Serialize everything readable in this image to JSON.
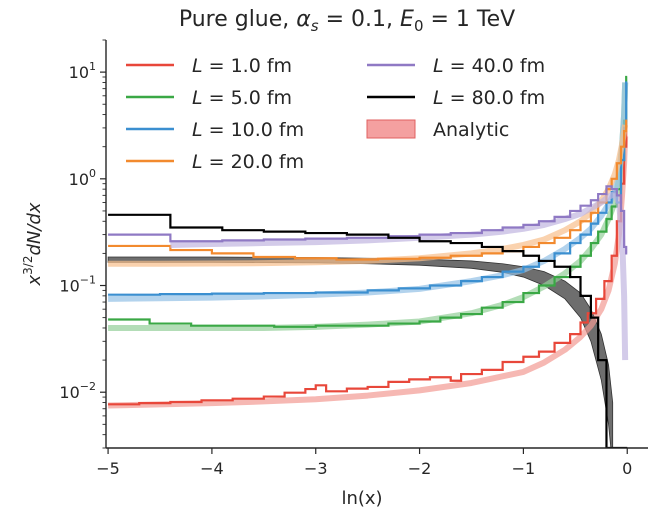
{
  "chart_data": {
    "type": "line",
    "title_parts": {
      "prefix": "Pure glue, ",
      "alpha": "α",
      "alpha_sub": "s",
      "mid": " = 0.1, ",
      "e": "E",
      "e_sub": "0",
      "suffix": " = 1 TeV"
    },
    "xlabel": "ln(x)",
    "ylabel_parts": {
      "base": "x",
      "exp": "3/2",
      "rest": "dN/dx"
    },
    "xlim": [
      -5.02,
      0.2
    ],
    "ylim": [
      0.003,
      20
    ],
    "yscale": "log",
    "grid": false,
    "legend_position": "top",
    "x_ticks": [
      {
        "value": -5,
        "label": "−5"
      },
      {
        "value": -4,
        "label": "−4"
      },
      {
        "value": -3,
        "label": "−3"
      },
      {
        "value": -2,
        "label": "−2"
      },
      {
        "value": -1,
        "label": "−1"
      },
      {
        "value": 0,
        "label": "0"
      }
    ],
    "y_ticks": [
      {
        "value": 0.01,
        "base": "10",
        "exp": "−2"
      },
      {
        "value": 0.1,
        "base": "10",
        "exp": "−1"
      },
      {
        "value": 1,
        "base": "10",
        "exp": "0"
      },
      {
        "value": 10,
        "base": "10",
        "exp": "1"
      }
    ],
    "series": [
      {
        "name": "L = 1.0 fm",
        "legend": {
          "prefix": "L",
          "value": " = 1.0 fm"
        },
        "color": "#e8473a",
        "histogram": [
          [
            -5.0,
            0.0077
          ],
          [
            -4.7,
            0.0079
          ],
          [
            -4.4,
            0.0081
          ],
          [
            -4.1,
            0.0084
          ],
          [
            -3.8,
            0.0087
          ],
          [
            -3.5,
            0.0091
          ],
          [
            -3.3,
            0.0099
          ],
          [
            -3.1,
            0.0107
          ],
          [
            -3.0,
            0.0116
          ],
          [
            -2.9,
            0.0102
          ],
          [
            -2.7,
            0.0108
          ],
          [
            -2.5,
            0.0112
          ],
          [
            -2.3,
            0.0125
          ],
          [
            -2.1,
            0.0132
          ],
          [
            -1.9,
            0.0138
          ],
          [
            -1.7,
            0.0128
          ],
          [
            -1.6,
            0.0148
          ],
          [
            -1.4,
            0.0162
          ],
          [
            -1.2,
            0.0192
          ],
          [
            -1.0,
            0.0215
          ],
          [
            -0.85,
            0.024
          ],
          [
            -0.7,
            0.029
          ],
          [
            -0.55,
            0.035
          ],
          [
            -0.45,
            0.045
          ],
          [
            -0.38,
            0.055
          ],
          [
            -0.3,
            0.075
          ],
          [
            -0.22,
            0.11
          ],
          [
            -0.15,
            0.19
          ],
          [
            -0.1,
            0.4
          ],
          [
            -0.06,
            0.9
          ],
          [
            -0.03,
            2.0
          ],
          [
            -0.01,
            3.5
          ]
        ],
        "analytic": [
          [
            -5.0,
            0.0075
          ],
          [
            -4.5,
            0.0077
          ],
          [
            -4.0,
            0.0079
          ],
          [
            -3.5,
            0.0082
          ],
          [
            -3.0,
            0.0086
          ],
          [
            -2.5,
            0.0093
          ],
          [
            -2.0,
            0.0104
          ],
          [
            -1.5,
            0.0122
          ],
          [
            -1.0,
            0.0155
          ],
          [
            -0.8,
            0.019
          ],
          [
            -0.6,
            0.025
          ],
          [
            -0.45,
            0.033
          ],
          [
            -0.35,
            0.042
          ],
          [
            -0.25,
            0.06
          ],
          [
            -0.18,
            0.09
          ],
          [
            -0.12,
            0.16
          ],
          [
            -0.08,
            0.3
          ],
          [
            -0.05,
            0.7
          ],
          [
            -0.03,
            1.4
          ],
          [
            -0.02,
            2.5
          ]
        ]
      },
      {
        "name": "L = 5.0 fm",
        "legend": {
          "prefix": "L",
          "value": " = 5.0 fm"
        },
        "color": "#3aa845",
        "histogram": [
          [
            -5.0,
            0.048
          ],
          [
            -4.6,
            0.044
          ],
          [
            -4.2,
            0.042
          ],
          [
            -3.8,
            0.042
          ],
          [
            -3.4,
            0.041
          ],
          [
            -3.0,
            0.042
          ],
          [
            -2.6,
            0.042
          ],
          [
            -2.3,
            0.044
          ],
          [
            -2.0,
            0.046
          ],
          [
            -1.8,
            0.05
          ],
          [
            -1.6,
            0.054
          ],
          [
            -1.4,
            0.062
          ],
          [
            -1.2,
            0.07
          ],
          [
            -1.0,
            0.085
          ],
          [
            -0.85,
            0.1
          ],
          [
            -0.7,
            0.12
          ],
          [
            -0.55,
            0.15
          ],
          [
            -0.45,
            0.19
          ],
          [
            -0.35,
            0.25
          ],
          [
            -0.28,
            0.32
          ],
          [
            -0.2,
            0.42
          ],
          [
            -0.15,
            0.55
          ],
          [
            -0.1,
            0.8
          ],
          [
            -0.06,
            1.5
          ],
          [
            -0.03,
            3.5
          ],
          [
            -0.01,
            9.0
          ]
        ],
        "analytic": [
          [
            -5.0,
            0.04
          ],
          [
            -4.5,
            0.04
          ],
          [
            -4.0,
            0.04
          ],
          [
            -3.5,
            0.04
          ],
          [
            -3.0,
            0.041
          ],
          [
            -2.5,
            0.043
          ],
          [
            -2.0,
            0.046
          ],
          [
            -1.5,
            0.055
          ],
          [
            -1.2,
            0.066
          ],
          [
            -1.0,
            0.078
          ],
          [
            -0.8,
            0.098
          ],
          [
            -0.6,
            0.13
          ],
          [
            -0.45,
            0.17
          ],
          [
            -0.35,
            0.22
          ],
          [
            -0.25,
            0.3
          ],
          [
            -0.18,
            0.42
          ],
          [
            -0.12,
            0.6
          ],
          [
            -0.08,
            1.0
          ],
          [
            -0.05,
            2.0
          ],
          [
            -0.03,
            4.0
          ],
          [
            -0.02,
            8.0
          ]
        ]
      },
      {
        "name": "L = 10.0 fm",
        "legend": {
          "prefix": "L",
          "value": " = 10.0 fm"
        },
        "color": "#3b8fd0",
        "histogram": [
          [
            -5.0,
            0.082
          ],
          [
            -4.5,
            0.083
          ],
          [
            -4.0,
            0.084
          ],
          [
            -3.5,
            0.085
          ],
          [
            -3.0,
            0.086
          ],
          [
            -2.5,
            0.09
          ],
          [
            -2.2,
            0.094
          ],
          [
            -1.9,
            0.1
          ],
          [
            -1.6,
            0.11
          ],
          [
            -1.4,
            0.12
          ],
          [
            -1.2,
            0.135
          ],
          [
            -1.0,
            0.15
          ],
          [
            -0.85,
            0.17
          ],
          [
            -0.7,
            0.2
          ],
          [
            -0.55,
            0.25
          ],
          [
            -0.45,
            0.3
          ],
          [
            -0.35,
            0.38
          ],
          [
            -0.28,
            0.48
          ],
          [
            -0.2,
            0.6
          ],
          [
            -0.15,
            0.75
          ],
          [
            -0.1,
            0.6
          ],
          [
            -0.06,
            1.5
          ],
          [
            -0.03,
            3.0
          ],
          [
            -0.01,
            8.0
          ]
        ],
        "analytic": [
          [
            -5.0,
            0.075
          ],
          [
            -4.5,
            0.076
          ],
          [
            -4.0,
            0.077
          ],
          [
            -3.5,
            0.079
          ],
          [
            -3.0,
            0.082
          ],
          [
            -2.5,
            0.086
          ],
          [
            -2.0,
            0.093
          ],
          [
            -1.5,
            0.11
          ],
          [
            -1.2,
            0.125
          ],
          [
            -1.0,
            0.14
          ],
          [
            -0.8,
            0.17
          ],
          [
            -0.6,
            0.22
          ],
          [
            -0.45,
            0.28
          ],
          [
            -0.35,
            0.34
          ],
          [
            -0.25,
            0.45
          ],
          [
            -0.18,
            0.58
          ],
          [
            -0.12,
            0.75
          ],
          [
            -0.08,
            1.1
          ],
          [
            -0.05,
            2.0
          ],
          [
            -0.03,
            4.0
          ],
          [
            -0.02,
            8.0
          ]
        ]
      },
      {
        "name": "L = 20.0 fm",
        "legend": {
          "prefix": "L",
          "value": " = 20.0 fm"
        },
        "color": "#f28a2e",
        "histogram": [
          [
            -5.0,
            0.235
          ],
          [
            -4.4,
            0.215
          ],
          [
            -4.0,
            0.2
          ],
          [
            -3.6,
            0.185
          ],
          [
            -3.2,
            0.18
          ],
          [
            -2.8,
            0.175
          ],
          [
            -2.4,
            0.178
          ],
          [
            -2.0,
            0.182
          ],
          [
            -1.7,
            0.19
          ],
          [
            -1.4,
            0.2
          ],
          [
            -1.2,
            0.21
          ],
          [
            -1.0,
            0.23
          ],
          [
            -0.85,
            0.25
          ],
          [
            -0.7,
            0.28
          ],
          [
            -0.55,
            0.33
          ],
          [
            -0.45,
            0.4
          ],
          [
            -0.35,
            0.48
          ],
          [
            -0.28,
            0.6
          ],
          [
            -0.2,
            0.8
          ],
          [
            -0.15,
            1.0
          ],
          [
            -0.1,
            1.4
          ],
          [
            -0.06,
            2.0
          ],
          [
            -0.03,
            2.8
          ],
          [
            -0.01,
            3.5
          ]
        ],
        "analytic": [
          [
            -5.0,
            0.16
          ],
          [
            -4.5,
            0.16
          ],
          [
            -4.0,
            0.161
          ],
          [
            -3.5,
            0.162
          ],
          [
            -3.0,
            0.165
          ],
          [
            -2.5,
            0.17
          ],
          [
            -2.0,
            0.18
          ],
          [
            -1.5,
            0.2
          ],
          [
            -1.2,
            0.22
          ],
          [
            -1.0,
            0.24
          ],
          [
            -0.8,
            0.27
          ],
          [
            -0.6,
            0.33
          ],
          [
            -0.45,
            0.4
          ],
          [
            -0.35,
            0.48
          ],
          [
            -0.25,
            0.62
          ],
          [
            -0.18,
            0.8
          ],
          [
            -0.12,
            1.1
          ],
          [
            -0.08,
            1.5
          ],
          [
            -0.05,
            2.1
          ],
          [
            -0.03,
            2.8
          ],
          [
            -0.02,
            3.2
          ]
        ]
      },
      {
        "name": "L = 40.0 fm",
        "legend": {
          "prefix": "L",
          "value": " = 40.0 fm"
        },
        "color": "#8f79c4",
        "histogram": [
          [
            -5.0,
            0.3
          ],
          [
            -4.4,
            0.26
          ],
          [
            -3.9,
            0.265
          ],
          [
            -3.5,
            0.27
          ],
          [
            -3.1,
            0.275
          ],
          [
            -2.7,
            0.28
          ],
          [
            -2.3,
            0.29
          ],
          [
            -2.0,
            0.3
          ],
          [
            -1.7,
            0.31
          ],
          [
            -1.4,
            0.33
          ],
          [
            -1.2,
            0.35
          ],
          [
            -1.0,
            0.37
          ],
          [
            -0.85,
            0.4
          ],
          [
            -0.7,
            0.44
          ],
          [
            -0.55,
            0.5
          ],
          [
            -0.45,
            0.56
          ],
          [
            -0.35,
            0.63
          ],
          [
            -0.28,
            0.72
          ],
          [
            -0.2,
            0.85
          ],
          [
            -0.15,
            0.8
          ],
          [
            -0.1,
            0.7
          ],
          [
            -0.06,
            0.5
          ],
          [
            -0.03,
            0.23
          ],
          [
            -0.01,
            0.2
          ]
        ],
        "analytic": [
          [
            -4.4,
            0.24
          ],
          [
            -4.0,
            0.245
          ],
          [
            -3.5,
            0.25
          ],
          [
            -3.0,
            0.255
          ],
          [
            -2.5,
            0.265
          ],
          [
            -2.0,
            0.28
          ],
          [
            -1.5,
            0.3
          ],
          [
            -1.2,
            0.32
          ],
          [
            -1.0,
            0.34
          ],
          [
            -0.8,
            0.37
          ],
          [
            -0.6,
            0.42
          ],
          [
            -0.45,
            0.47
          ],
          [
            -0.35,
            0.53
          ],
          [
            -0.25,
            0.6
          ],
          [
            -0.18,
            0.68
          ],
          [
            -0.12,
            0.72
          ],
          [
            -0.08,
            0.6
          ],
          [
            -0.05,
            0.3
          ],
          [
            -0.03,
            0.08
          ],
          [
            -0.02,
            0.02
          ]
        ]
      },
      {
        "name": "L = 80.0 fm",
        "legend": {
          "prefix": "L",
          "value": " = 80.0 fm"
        },
        "color": "#000000",
        "histogram": [
          [
            -5.0,
            0.46
          ],
          [
            -4.4,
            0.35
          ],
          [
            -3.9,
            0.33
          ],
          [
            -3.5,
            0.32
          ],
          [
            -3.1,
            0.31
          ],
          [
            -2.7,
            0.3
          ],
          [
            -2.3,
            0.28
          ],
          [
            -2.0,
            0.26
          ],
          [
            -1.7,
            0.25
          ],
          [
            -1.4,
            0.23
          ],
          [
            -1.2,
            0.21
          ],
          [
            -1.0,
            0.19
          ],
          [
            -0.85,
            0.17
          ],
          [
            -0.7,
            0.15
          ],
          [
            -0.55,
            0.12
          ],
          [
            -0.45,
            0.08
          ],
          [
            -0.35,
            0.05
          ],
          [
            -0.28,
            0.02
          ],
          [
            -0.2,
            0.003
          ]
        ]
      }
    ],
    "analytic_band": {
      "name": "Analytic",
      "color": "#f08080",
      "fill_color": "#555555",
      "points": [
        [
          -5.0,
          0.165,
          0.185
        ],
        [
          -4.5,
          0.165,
          0.185
        ],
        [
          -4.0,
          0.165,
          0.185
        ],
        [
          -3.5,
          0.164,
          0.184
        ],
        [
          -3.0,
          0.163,
          0.183
        ],
        [
          -2.5,
          0.16,
          0.18
        ],
        [
          -2.0,
          0.155,
          0.177
        ],
        [
          -1.5,
          0.145,
          0.17
        ],
        [
          -1.2,
          0.133,
          0.16
        ],
        [
          -1.0,
          0.12,
          0.15
        ],
        [
          -0.8,
          0.1,
          0.135
        ],
        [
          -0.6,
          0.075,
          0.11
        ],
        [
          -0.45,
          0.05,
          0.085
        ],
        [
          -0.35,
          0.03,
          0.06
        ],
        [
          -0.25,
          0.013,
          0.035
        ],
        [
          -0.18,
          0.005,
          0.018
        ],
        [
          -0.14,
          0.002,
          0.008
        ]
      ]
    }
  }
}
